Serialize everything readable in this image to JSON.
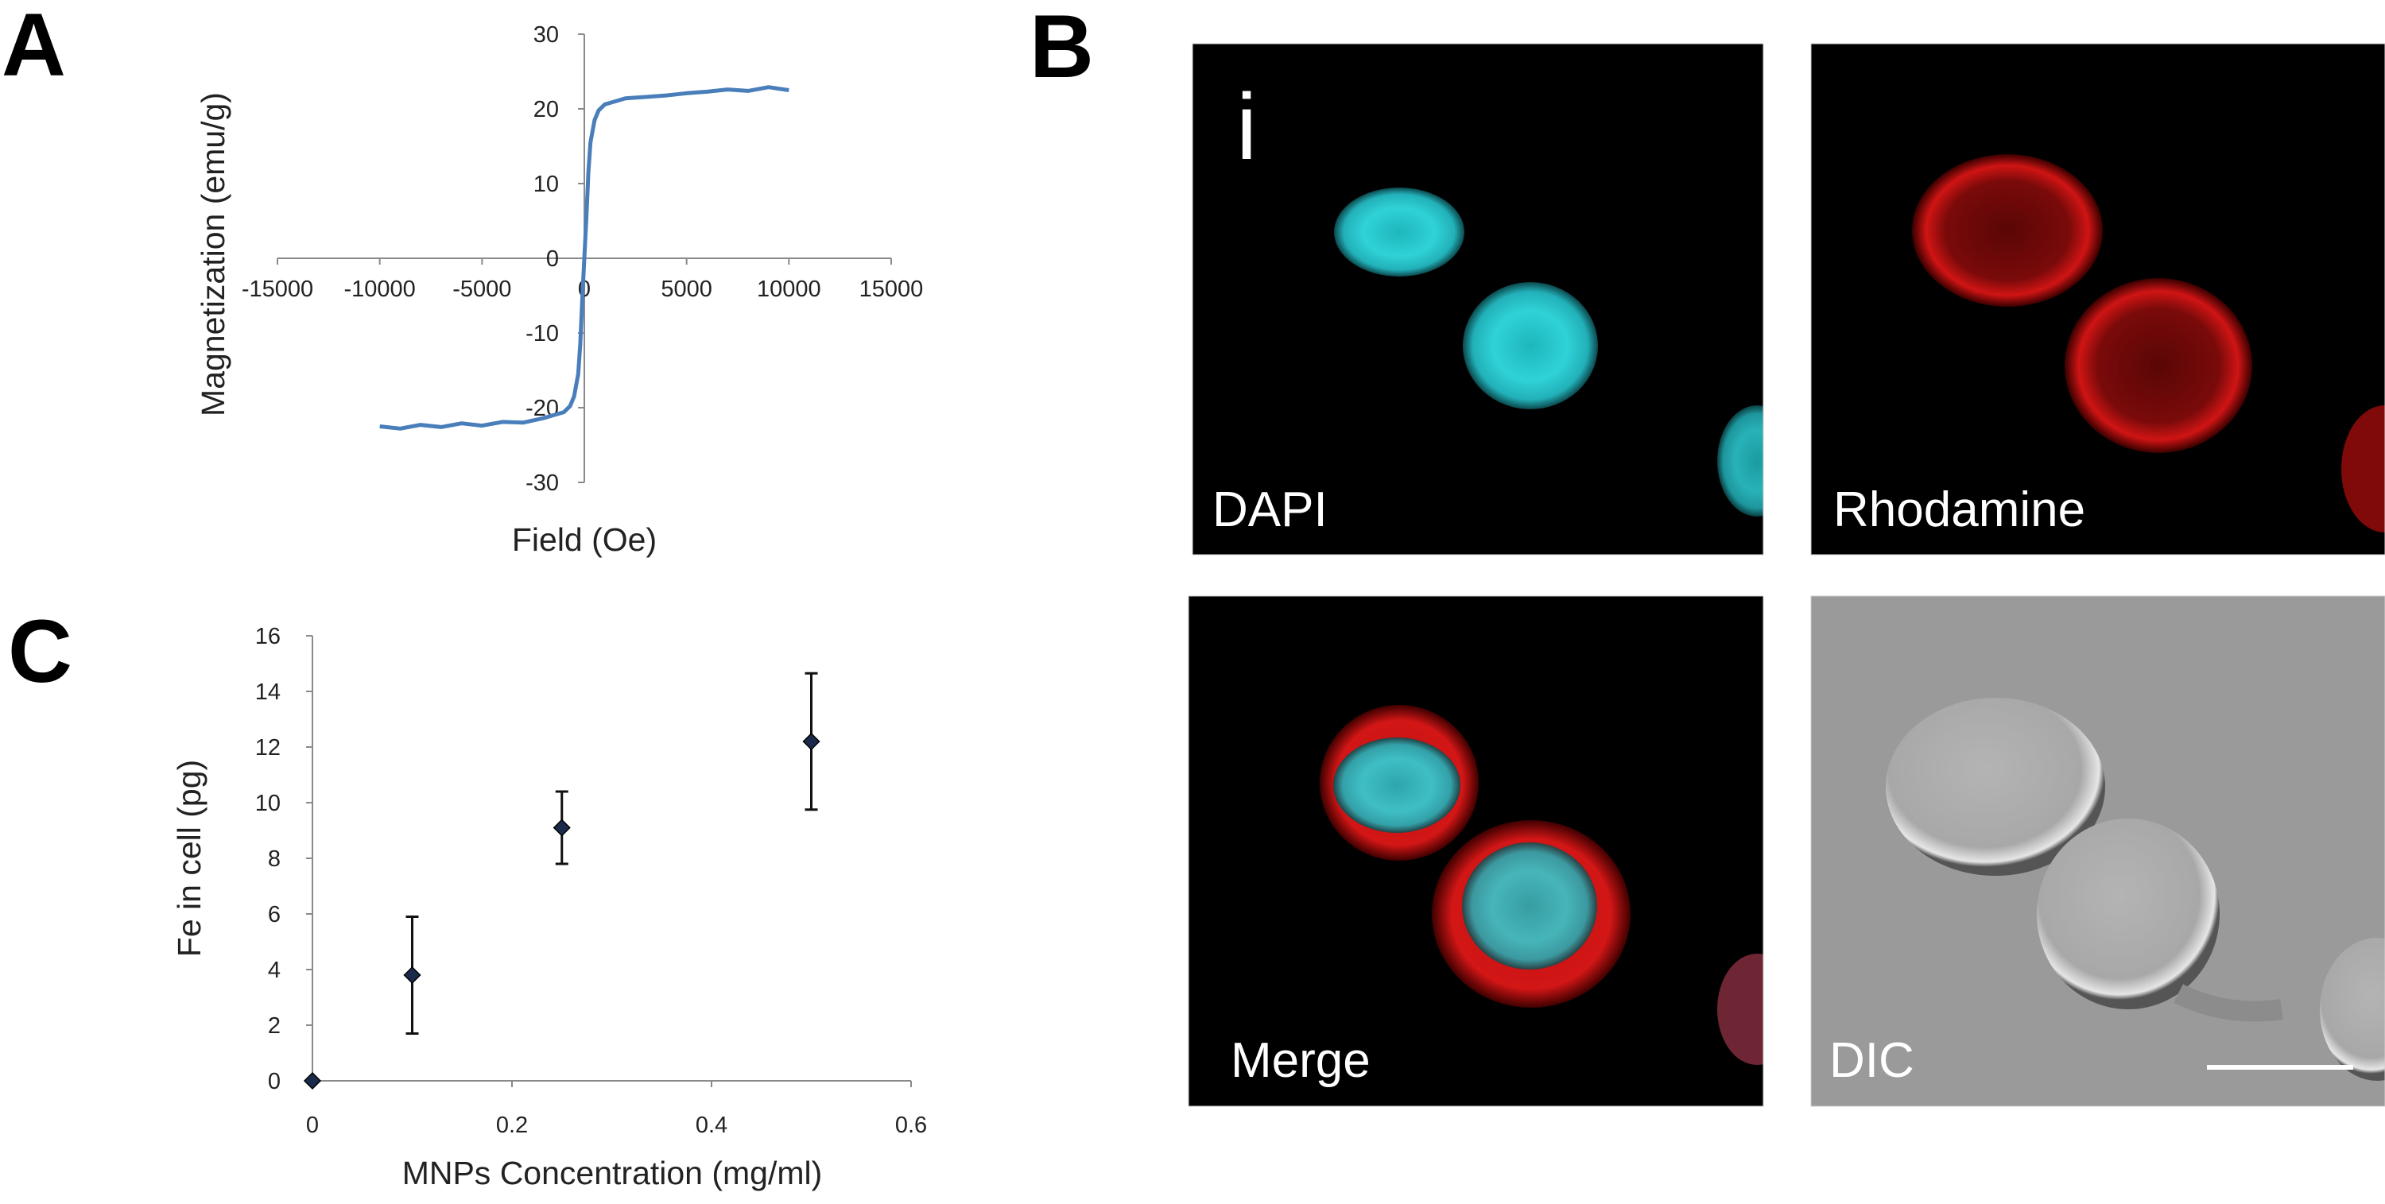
{
  "panels": {
    "a_label": "A",
    "b_label": "B",
    "c_label": "C"
  },
  "chart_data": [
    {
      "type": "line",
      "panel": "A",
      "xlabel": "Field (Oe)",
      "ylabel": "Magnetization (emu/g)",
      "xlim": [
        -15000,
        15000
      ],
      "ylim": [
        -30,
        30
      ],
      "xticks": [
        "-15000",
        "-10000",
        "-5000",
        "0",
        "5000",
        "10000",
        "15000"
      ],
      "yticks": [
        "30",
        "20",
        "10",
        "0",
        "-10",
        "-20",
        "-30"
      ],
      "color": "#4a7ebb",
      "grid": false,
      "x": [
        -10000,
        -9000,
        -8000,
        -7000,
        -6000,
        -5000,
        -4000,
        -3000,
        -2000,
        -1500,
        -1000,
        -700,
        -500,
        -300,
        -200,
        -100,
        0,
        100,
        200,
        300,
        500,
        700,
        1000,
        1500,
        2000,
        3000,
        4000,
        5000,
        6000,
        7000,
        8000,
        9000,
        10000
      ],
      "y": [
        -22.5,
        -22.8,
        -22.3,
        -22.6,
        -22.1,
        -22.4,
        -21.9,
        -22.0,
        -21.4,
        -21.0,
        -20.6,
        -19.8,
        -18.5,
        -15.5,
        -11.5,
        -5.5,
        0,
        5.5,
        11.5,
        15.5,
        18.5,
        19.8,
        20.6,
        21.0,
        21.4,
        21.6,
        21.8,
        22.1,
        22.3,
        22.6,
        22.4,
        22.9,
        22.5
      ]
    },
    {
      "type": "scatter",
      "panel": "C",
      "xlabel": "MNPs Concentration (mg/ml)",
      "ylabel": "Fe in cell (pg)",
      "xlim": [
        0,
        0.6
      ],
      "ylim": [
        0,
        16
      ],
      "xticks": [
        "0",
        "0.2",
        "0.4",
        "0.6"
      ],
      "yticks": [
        "16",
        "14",
        "12",
        "10",
        "8",
        "6",
        "4",
        "2",
        "0"
      ],
      "marker": "diamond",
      "color": "#1a2a4a",
      "grid": false,
      "x": [
        0,
        0.1,
        0.25,
        0.5
      ],
      "y": [
        0,
        3.8,
        9.1,
        12.2
      ],
      "error": [
        0,
        2.1,
        1.3,
        2.45
      ]
    }
  ],
  "micrographs": {
    "marker": "i",
    "dapi": "DAPI",
    "rhodamine": "Rhodamine",
    "merge": "Merge",
    "dic": "DIC",
    "colors": {
      "dapi": "#22c8d0",
      "rhodamine": "#c81010",
      "background": "#000000",
      "dic": "#9a9a9a"
    }
  }
}
